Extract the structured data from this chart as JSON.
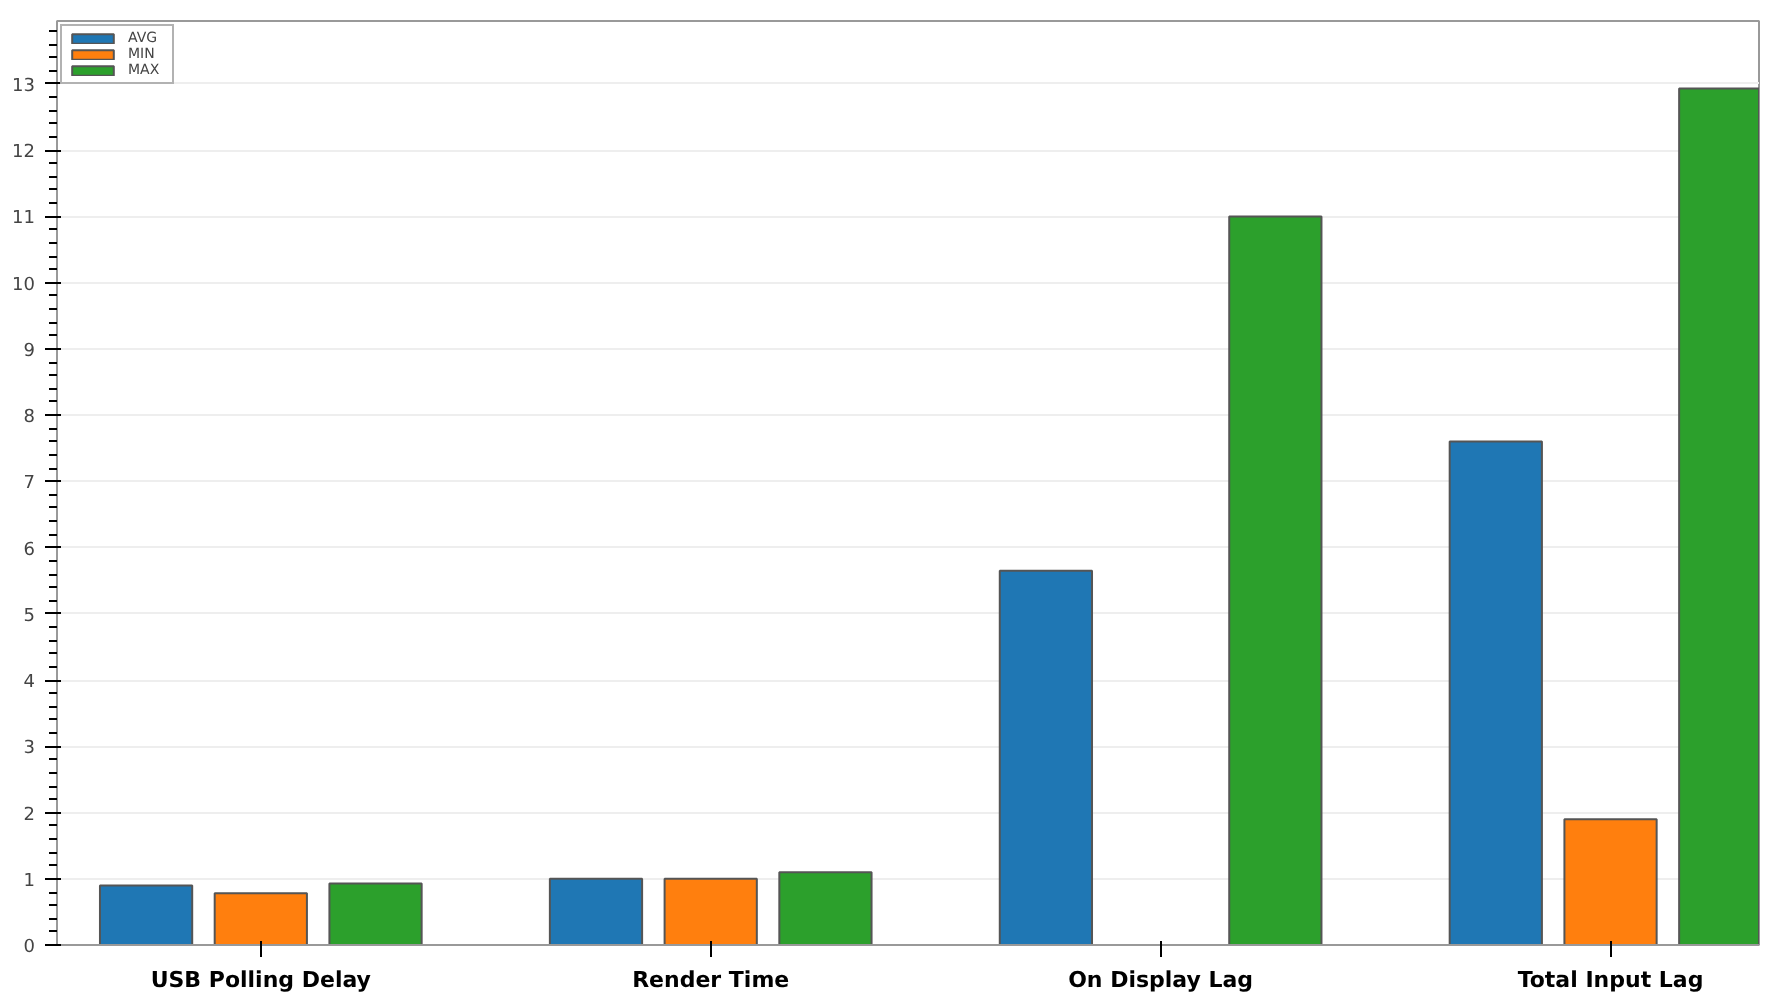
{
  "chart_data": {
    "type": "bar",
    "categories": [
      "USB Polling Delay",
      "Render Time",
      "On Display Lag",
      "Total Input Lag"
    ],
    "series": [
      {
        "name": "AVG",
        "color": "#1f77b4",
        "values": [
          0.9,
          1.0,
          5.65,
          7.6
        ]
      },
      {
        "name": "MIN",
        "color": "#ff7f0e",
        "values": [
          0.78,
          1.0,
          null,
          1.9
        ]
      },
      {
        "name": "MAX",
        "color": "#2ca02c",
        "values": [
          0.93,
          1.1,
          11.0,
          12.93
        ]
      }
    ],
    "ylim": [
      0,
      13.95
    ],
    "yticks": [
      0,
      1,
      2,
      3,
      4,
      5,
      6,
      7,
      8,
      9,
      10,
      11,
      12,
      13
    ],
    "grid": "y",
    "legend": "top left"
  }
}
